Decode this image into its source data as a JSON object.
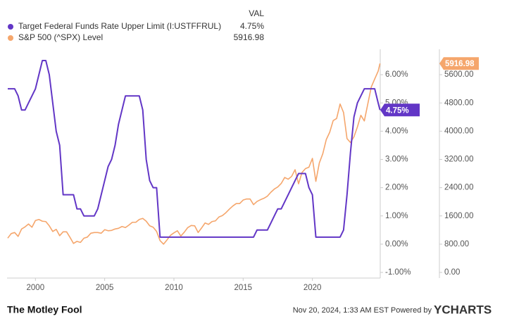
{
  "chart_data": {
    "type": "line",
    "legend_header": "VAL",
    "x": [
      1998,
      1998.25,
      1998.5,
      1998.75,
      1999,
      1999.25,
      1999.5,
      1999.75,
      2000,
      2000.25,
      2000.5,
      2000.75,
      2001,
      2001.25,
      2001.5,
      2001.75,
      2002,
      2002.25,
      2002.5,
      2002.75,
      2003,
      2003.25,
      2003.5,
      2003.75,
      2004,
      2004.25,
      2004.5,
      2004.75,
      2005,
      2005.25,
      2005.5,
      2005.75,
      2006,
      2006.25,
      2006.5,
      2006.75,
      2007,
      2007.25,
      2007.5,
      2007.75,
      2008,
      2008.25,
      2008.5,
      2008.75,
      2009,
      2009.25,
      2009.5,
      2009.75,
      2010,
      2010.25,
      2010.5,
      2010.75,
      2011,
      2011.25,
      2011.5,
      2011.75,
      2012,
      2012.25,
      2012.5,
      2012.75,
      2013,
      2013.25,
      2013.5,
      2013.75,
      2014,
      2014.25,
      2014.5,
      2014.75,
      2015,
      2015.25,
      2015.5,
      2015.75,
      2016,
      2016.25,
      2016.5,
      2016.75,
      2017,
      2017.25,
      2017.5,
      2017.75,
      2018,
      2018.25,
      2018.5,
      2018.75,
      2019,
      2019.25,
      2019.5,
      2019.75,
      2020,
      2020.25,
      2020.5,
      2020.75,
      2021,
      2021.25,
      2021.5,
      2021.75,
      2022,
      2022.25,
      2022.5,
      2022.75,
      2023,
      2023.25,
      2023.5,
      2023.75,
      2024,
      2024.25,
      2024.5,
      2024.75,
      2024.88
    ],
    "series": [
      {
        "name": "Target Federal Funds Rate Upper Limit (I:USTFFRUL)",
        "color": "#6236c6",
        "axis": "y",
        "last_value_label": "4.75%",
        "values": [
          5.5,
          5.5,
          5.5,
          5.25,
          4.75,
          4.75,
          5.0,
          5.25,
          5.5,
          6.0,
          6.5,
          6.5,
          6.0,
          5.0,
          4.0,
          3.5,
          1.75,
          1.75,
          1.75,
          1.75,
          1.25,
          1.25,
          1.0,
          1.0,
          1.0,
          1.0,
          1.25,
          1.75,
          2.25,
          2.75,
          3.0,
          3.5,
          4.25,
          4.75,
          5.25,
          5.25,
          5.25,
          5.25,
          5.25,
          4.75,
          3.0,
          2.25,
          2.0,
          2.0,
          0.25,
          0.25,
          0.25,
          0.25,
          0.25,
          0.25,
          0.25,
          0.25,
          0.25,
          0.25,
          0.25,
          0.25,
          0.25,
          0.25,
          0.25,
          0.25,
          0.25,
          0.25,
          0.25,
          0.25,
          0.25,
          0.25,
          0.25,
          0.25,
          0.25,
          0.25,
          0.25,
          0.25,
          0.5,
          0.5,
          0.5,
          0.5,
          0.75,
          1.0,
          1.25,
          1.25,
          1.5,
          1.75,
          2.0,
          2.25,
          2.5,
          2.5,
          2.5,
          2.0,
          1.75,
          0.25,
          0.25,
          0.25,
          0.25,
          0.25,
          0.25,
          0.25,
          0.25,
          0.5,
          1.75,
          3.25,
          4.5,
          5.0,
          5.25,
          5.5,
          5.5,
          5.5,
          5.5,
          5.0,
          4.75
        ]
      },
      {
        "name": "S&P 500 (^SPX) Level",
        "color": "#f5a66c",
        "axis": "y2",
        "last_value_label": "5916.98",
        "values": [
          970,
          1100,
          1130,
          1020,
          1230,
          1290,
          1370,
          1280,
          1470,
          1500,
          1450,
          1440,
          1320,
          1160,
          1220,
          1040,
          1150,
          1150,
          990,
          820,
          880,
          850,
          970,
          1000,
          1110,
          1130,
          1130,
          1110,
          1210,
          1180,
          1190,
          1230,
          1250,
          1300,
          1270,
          1340,
          1420,
          1420,
          1500,
          1530,
          1450,
          1320,
          1280,
          1160,
          900,
          800,
          920,
          1050,
          1120,
          1180,
          1030,
          1140,
          1270,
          1330,
          1320,
          1130,
          1260,
          1400,
          1360,
          1440,
          1460,
          1570,
          1610,
          1690,
          1790,
          1880,
          1950,
          1950,
          2050,
          2080,
          2080,
          1920,
          2010,
          2060,
          2100,
          2160,
          2270,
          2360,
          2420,
          2520,
          2690,
          2640,
          2720,
          2910,
          2510,
          2830,
          2940,
          2980,
          3230,
          2580,
          3100,
          3360,
          3760,
          3970,
          4300,
          4360,
          4770,
          4530,
          3790,
          3680,
          3840,
          4120,
          4450,
          4290,
          4770,
          5250,
          5480,
          5700,
          5916.98
        ]
      }
    ],
    "xlim": [
      1997.95,
      2024.9
    ],
    "xticks": [
      2000,
      2005,
      2010,
      2015,
      2020
    ],
    "ylim": [
      -1.2,
      6.9
    ],
    "yticks": [
      {
        "value": -1,
        "label": "-1.00%"
      },
      {
        "value": 0,
        "label": "0.00%"
      },
      {
        "value": 1,
        "label": "1.00%"
      },
      {
        "value": 2,
        "label": "2.00%"
      },
      {
        "value": 3,
        "label": "3.00%"
      },
      {
        "value": 4,
        "label": "4.00%"
      },
      {
        "value": 5,
        "label": "5.00%"
      },
      {
        "value": 6,
        "label": "6.00%"
      }
    ],
    "y2lim": [
      -160,
      6320
    ],
    "y2ticks": [
      {
        "value": 0,
        "label": "0.00"
      },
      {
        "value": 800,
        "label": "800.00"
      },
      {
        "value": 1600,
        "label": "1600.00"
      },
      {
        "value": 2400,
        "label": "2400.00"
      },
      {
        "value": 3200,
        "label": "3200.00"
      },
      {
        "value": 4000,
        "label": "4000.00"
      },
      {
        "value": 4800,
        "label": "4800.00"
      },
      {
        "value": 5600,
        "label": "5600.00"
      }
    ],
    "grid": false
  },
  "footer": {
    "source": "The Motley Fool",
    "timestamp": "Nov 20, 2024, 1:33 AM EST Powered by",
    "brand": "YCHARTS"
  }
}
